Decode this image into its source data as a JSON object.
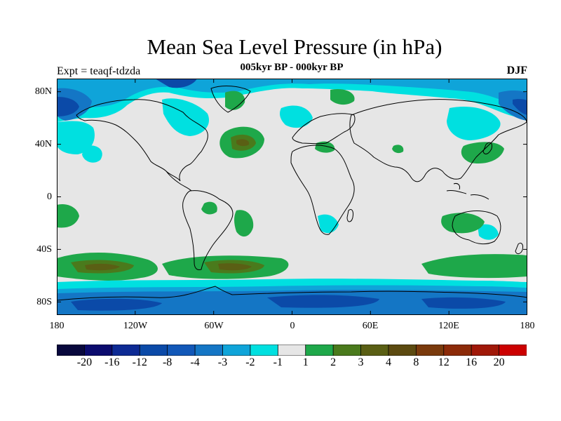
{
  "title": "Mean Sea Level Pressure (in hPa)",
  "subtitle": "005kyr BP - 000kyr BP",
  "left_label": "Expt = teaqf-tdzda",
  "right_label": "DJF",
  "y_ticks": [
    "80N",
    "40N",
    "0",
    "40S",
    "80S"
  ],
  "x_ticks": [
    "180",
    "120W",
    "60W",
    "0",
    "60E",
    "120E",
    "180"
  ],
  "colors": {
    "background": "#ffffff",
    "neutral": "#e6e6e6",
    "land_outline": "#000000",
    "cyan": "#00e0e0",
    "light_blue": "#0fa4d9",
    "mid_blue": "#1476c5",
    "dark_blue": "#0b4aa8",
    "green": "#1ea84a",
    "dark_green": "#4a7a1c",
    "olive": "#5a5f14"
  },
  "colorbar": {
    "colors": [
      "#08083d",
      "#0b0b6e",
      "#0d2a94",
      "#0b4aa8",
      "#1258b8",
      "#1476c5",
      "#0fa4d9",
      "#00e0e0",
      "#e6e6e6",
      "#1ea84a",
      "#4a7a1c",
      "#5a5f14",
      "#5c4a10",
      "#7a3a0c",
      "#8c2a08",
      "#a01808",
      "#cc0000"
    ],
    "labels": [
      "-20",
      "-16",
      "-12",
      "-8",
      "-4",
      "-3",
      "-2",
      "-1",
      "1",
      "2",
      "3",
      "4",
      "8",
      "12",
      "16",
      "20"
    ]
  }
}
